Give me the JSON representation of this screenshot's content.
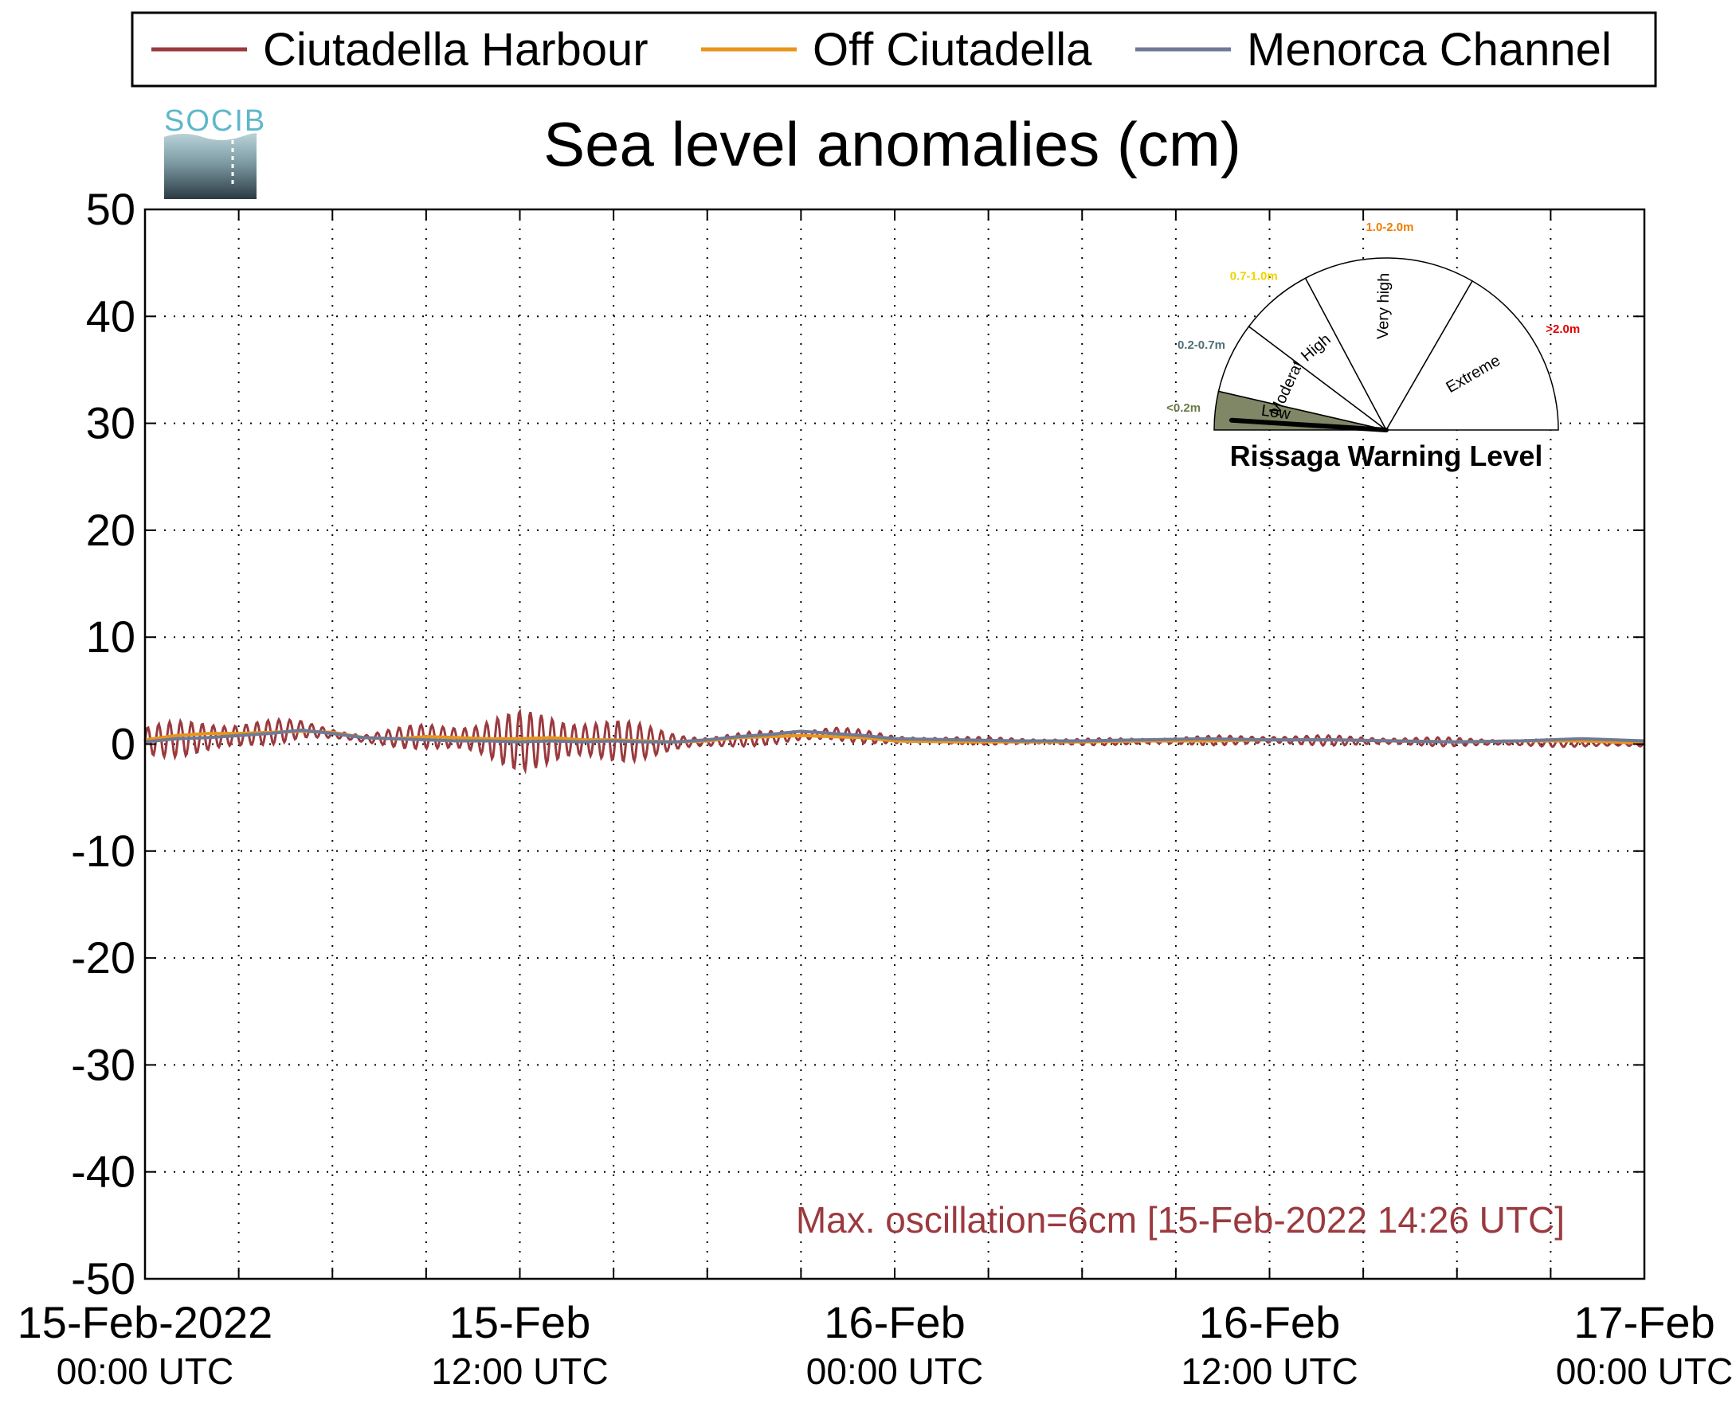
{
  "logo": {
    "text": "SOCIB"
  },
  "chart_data": {
    "type": "line",
    "title": "Sea level anomalies (cm)",
    "xlabel": "",
    "ylabel": "",
    "ylim": [
      -50,
      50
    ],
    "yticks": [
      50,
      40,
      30,
      20,
      10,
      0,
      -10,
      -20,
      -30,
      -40,
      -50
    ],
    "xlim_hours": [
      0,
      48
    ],
    "x_ticks": [
      {
        "hours": 0,
        "date": "15-Feb-2022",
        "time": "00:00 UTC"
      },
      {
        "hours": 12,
        "date": "15-Feb",
        "time": "12:00 UTC"
      },
      {
        "hours": 24,
        "date": "16-Feb",
        "time": "00:00 UTC"
      },
      {
        "hours": 36,
        "date": "16-Feb",
        "time": "12:00 UTC"
      },
      {
        "hours": 48,
        "date": "17-Feb",
        "time": "00:00 UTC"
      }
    ],
    "grid": true,
    "legend_position": "top",
    "series": [
      {
        "name": "Ciutadella Harbour",
        "color": "#9b3a3e",
        "envelope": [
          {
            "hours": 0,
            "center": 0.3,
            "amp": 1.6
          },
          {
            "hours": 3,
            "center": 0.8,
            "amp": 1.8
          },
          {
            "hours": 5,
            "center": 1.4,
            "amp": 0.8
          },
          {
            "hours": 7,
            "center": 0.5,
            "amp": 0.5
          },
          {
            "hours": 9,
            "center": 0.7,
            "amp": 1.3
          },
          {
            "hours": 12,
            "center": 0.3,
            "amp": 2.8
          },
          {
            "hours": 14,
            "center": 0.4,
            "amp": 2.8
          },
          {
            "hours": 16,
            "center": 0.2,
            "amp": 1.6
          },
          {
            "hours": 18,
            "center": 0.2,
            "amp": 0.6
          },
          {
            "hours": 22,
            "center": 1.0,
            "amp": 0.8
          },
          {
            "hours": 24,
            "center": 0.4,
            "amp": 0.4
          },
          {
            "hours": 30,
            "center": 0.2,
            "amp": 0.3
          },
          {
            "hours": 36,
            "center": 0.4,
            "amp": 0.5
          },
          {
            "hours": 42,
            "center": 0.2,
            "amp": 0.4
          },
          {
            "hours": 48,
            "center": 0.0,
            "amp": 0.3
          }
        ]
      },
      {
        "name": "Off Ciutadella",
        "color": "#e8951d",
        "values_hours": [
          0,
          1,
          2,
          3,
          4,
          5,
          6,
          7,
          8,
          9,
          10,
          11,
          12,
          13,
          14,
          15,
          16,
          17,
          18,
          19,
          20,
          21,
          22,
          23,
          24,
          26,
          28,
          30,
          32,
          34,
          36,
          38,
          40,
          42,
          44,
          46,
          48
        ],
        "values": [
          0.4,
          0.8,
          1.0,
          1.0,
          1.1,
          1.2,
          1.1,
          0.6,
          0.5,
          0.7,
          0.6,
          0.5,
          0.5,
          0.6,
          0.4,
          0.4,
          0.3,
          0.2,
          0.3,
          0.6,
          0.7,
          0.8,
          0.7,
          0.6,
          0.3,
          0.2,
          0.2,
          0.2,
          0.3,
          0.3,
          0.4,
          0.4,
          0.3,
          0.2,
          0.3,
          0.3,
          0.1
        ]
      },
      {
        "name": "Menorca Channel",
        "color": "#6e7a96",
        "values_hours": [
          0,
          1,
          2,
          3,
          4,
          5,
          6,
          7,
          8,
          9,
          10,
          11,
          12,
          13,
          14,
          15,
          16,
          17,
          18,
          19,
          20,
          21,
          22,
          23,
          24,
          26,
          28,
          30,
          32,
          34,
          36,
          38,
          40,
          42,
          44,
          46,
          48
        ],
        "values": [
          0.2,
          0.5,
          0.6,
          0.8,
          1.0,
          1.3,
          1.0,
          0.6,
          0.5,
          0.4,
          0.3,
          0.3,
          0.2,
          0.3,
          0.2,
          0.3,
          0.2,
          0.2,
          0.4,
          0.7,
          0.9,
          1.2,
          1.0,
          0.8,
          0.5,
          0.4,
          0.3,
          0.3,
          0.4,
          0.5,
          0.4,
          0.4,
          0.3,
          0.2,
          0.3,
          0.5,
          0.3
        ]
      }
    ],
    "annotation": "Max. oscillation=6cm [15-Feb-2022 14:26 UTC]",
    "annotation_color": "#9b3a3e"
  },
  "gauge": {
    "title": "Rissaga Warning Level",
    "current_level": "Low",
    "needle_fraction": 0.12,
    "segments": [
      {
        "label": "Low",
        "range": "<0.2m",
        "range_color": "#6b7a4a",
        "fill": "#7f8766"
      },
      {
        "label": "Moderate",
        "range": "0.2-0.7m",
        "range_color": "#4f6f76",
        "fill": "#ffffff"
      },
      {
        "label": "High",
        "range": "0.7-1.0m",
        "range_color": "#f0d400",
        "fill": "#ffffff"
      },
      {
        "label": "Very high",
        "range": "1.0-2.0m",
        "range_color": "#f07c00",
        "fill": "#ffffff"
      },
      {
        "label": "Extreme",
        "range": ">2.0m",
        "range_color": "#e00000",
        "fill": "#ffffff"
      }
    ]
  }
}
